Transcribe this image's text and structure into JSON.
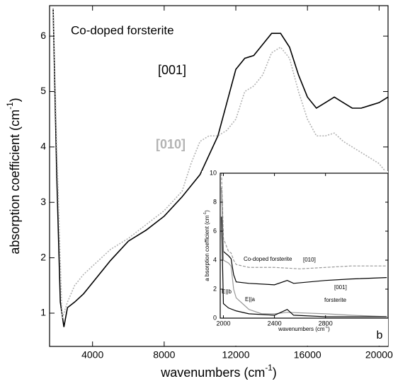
{
  "chart_data": [
    {
      "type": "line",
      "xlabel": {
        "text": "wavenumbers (cm",
        "sup": "-1",
        "end": ")"
      },
      "ylabel": {
        "text": "absorption coefficient (cm",
        "sup": "-1",
        "end": ")"
      },
      "xlim": [
        1600,
        20500
      ],
      "ylim": [
        0.4,
        6.55
      ],
      "xticks": [
        4000,
        8000,
        12000,
        16000,
        20000
      ],
      "yticks": [
        1,
        2,
        3,
        4,
        5,
        6
      ],
      "series": [
        {
          "name": "[001]",
          "color": "#000000",
          "dash": false,
          "x": [
            1800,
            2000,
            2200,
            2400,
            2600,
            3000,
            3500,
            4000,
            5000,
            6000,
            7000,
            8000,
            9000,
            10000,
            11000,
            11500,
            12000,
            12500,
            13000,
            13500,
            14000,
            14500,
            15000,
            15500,
            16000,
            16500,
            17000,
            17500,
            18000,
            18500,
            19000,
            19500,
            20000,
            20500
          ],
          "values": [
            6.5,
            3.5,
            1.2,
            0.75,
            1.1,
            1.2,
            1.35,
            1.55,
            1.95,
            2.3,
            2.5,
            2.75,
            3.1,
            3.5,
            4.2,
            4.8,
            5.4,
            5.6,
            5.65,
            5.85,
            6.05,
            6.05,
            5.8,
            5.3,
            4.9,
            4.7,
            4.8,
            4.9,
            4.8,
            4.7,
            4.7,
            4.75,
            4.8,
            4.9
          ]
        },
        {
          "name": "[010]",
          "color": "#b3b3b3",
          "dash": true,
          "x": [
            1800,
            2000,
            2300,
            2600,
            3000,
            3500,
            4000,
            5000,
            6000,
            7000,
            8000,
            9000,
            9500,
            10000,
            10500,
            11000,
            11500,
            12000,
            12500,
            13000,
            13500,
            14000,
            14500,
            15000,
            15500,
            16000,
            16500,
            17000,
            17500,
            18000,
            18500,
            19000,
            19500,
            20000,
            20500
          ],
          "values": [
            6.5,
            4,
            0.9,
            1.2,
            1.5,
            1.7,
            1.85,
            2.15,
            2.35,
            2.6,
            2.85,
            3.2,
            3.7,
            4.1,
            4.2,
            4.2,
            4.3,
            4.5,
            5.0,
            5.1,
            5.3,
            5.7,
            5.8,
            5.6,
            5.0,
            4.5,
            4.2,
            4.2,
            4.25,
            4.1,
            4.0,
            3.9,
            3.8,
            3.7,
            3.5
          ]
        }
      ],
      "annotations": [
        {
          "text": "Co-doped forsterite",
          "color": "#000000"
        },
        {
          "text": "[001]",
          "color": "#000000"
        },
        {
          "text": "[010]",
          "color": "#b3b3b3"
        }
      ]
    },
    {
      "type": "line",
      "xlabel": {
        "text": "wavenumbers (cm",
        "sup": "-1",
        "end": ")"
      },
      "ylabel": {
        "text": "a bsorption coefficient (cm",
        "sup": "-1",
        "end": ")"
      },
      "xlim": [
        1975,
        3290
      ],
      "ylim": [
        0,
        10
      ],
      "xticks": [
        2000,
        2400,
        2800
      ],
      "yticks": [
        0,
        2,
        4,
        6,
        8,
        10
      ],
      "series": [
        {
          "name": "[010]",
          "color": "#999999",
          "dash": true,
          "x": [
            1985,
            2000,
            2040,
            2060,
            2080,
            2100,
            2200,
            2400,
            2600,
            2800,
            3000,
            3280
          ],
          "values": [
            10,
            5.5,
            4.6,
            4.5,
            4.0,
            3.7,
            3.5,
            3.5,
            3.4,
            3.5,
            3.6,
            3.6
          ]
        },
        {
          "name": "[001]",
          "color": "#000000",
          "dash": false,
          "x": [
            1985,
            2000,
            2040,
            2060,
            2080,
            2100,
            2200,
            2400,
            2500,
            2550,
            2800,
            3000,
            3280
          ],
          "values": [
            9,
            4.6,
            4.3,
            4.1,
            3.0,
            2.5,
            2.4,
            2.3,
            2.6,
            2.4,
            2.6,
            2.7,
            2.8
          ]
        },
        {
          "name": "E||a",
          "color": "#999999",
          "dash": false,
          "x": [
            1985,
            2000,
            2040,
            2060,
            2080,
            2100,
            2150,
            2200,
            2300,
            2400,
            2500,
            2800,
            3000,
            3280
          ],
          "values": [
            9,
            4.0,
            3.8,
            3.6,
            2.0,
            1.4,
            1.0,
            0.6,
            0.3,
            0.3,
            0.4,
            0.3,
            0.2,
            0.1
          ]
        },
        {
          "name": "E||b",
          "color": "#000000",
          "dash": false,
          "x": [
            1985,
            2000,
            2040,
            2100,
            2200,
            2400,
            2500,
            2550,
            2800,
            3280
          ],
          "values": [
            7,
            1.0,
            0.7,
            0.5,
            0.3,
            0.2,
            0.6,
            0.2,
            0.1,
            0.1
          ]
        }
      ],
      "annotations": [
        {
          "text": "Co-doped forsterite",
          "color": "#000000"
        },
        {
          "text": "forsterite",
          "color": "#000000"
        },
        {
          "text": "b",
          "color": "#000000"
        }
      ]
    }
  ]
}
